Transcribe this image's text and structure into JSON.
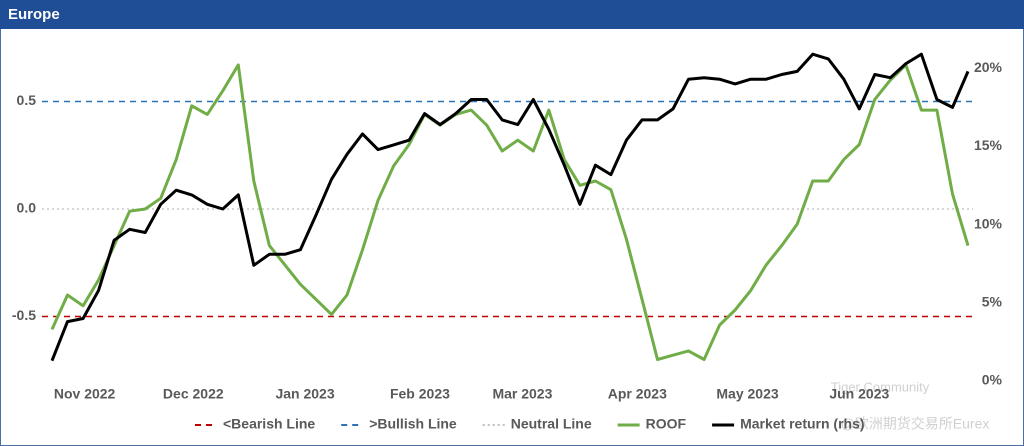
{
  "chart_data": {
    "type": "line",
    "title": "Europe",
    "x": [
      0,
      1,
      2,
      3,
      4,
      5,
      6,
      7,
      8,
      9,
      10,
      11,
      12,
      13,
      14,
      15,
      16,
      17,
      18,
      19,
      20,
      21,
      22,
      23,
      24,
      25,
      26,
      27,
      28,
      29,
      30,
      31,
      32,
      33,
      34,
      35,
      36,
      37,
      38,
      39,
      40,
      41,
      42,
      43,
      44,
      45,
      46,
      47,
      48,
      49,
      50,
      51,
      52,
      53,
      54,
      55,
      56,
      57,
      58,
      59
    ],
    "xlim": [
      0,
      59
    ],
    "xticks": [
      {
        "value": 2.1,
        "label": "Nov 2022"
      },
      {
        "value": 9.1,
        "label": "Dec 2022"
      },
      {
        "value": 16.3,
        "label": "Jan 2023"
      },
      {
        "value": 23.7,
        "label": "Feb 2023"
      },
      {
        "value": 30.3,
        "label": "Mar 2023"
      },
      {
        "value": 37.7,
        "label": "Apr 2023"
      },
      {
        "value": 44.8,
        "label": "May 2023"
      },
      {
        "value": 52.0,
        "label": "Jun 2023"
      }
    ],
    "ylim": [
      -0.8,
      0.8
    ],
    "yticks": [
      -0.5,
      {
        "value": 0,
        "label": "0.0"
      },
      0.5
    ],
    "y2lim": [
      0,
      22
    ],
    "y2ticks": [
      {
        "value": 0,
        "label": "0%"
      },
      {
        "value": 5,
        "label": "5%"
      },
      {
        "value": 10,
        "label": "10%"
      },
      {
        "value": 15,
        "label": "15%"
      },
      {
        "value": 20,
        "label": "20%"
      }
    ],
    "reference_lines": [
      {
        "name": "<Bearish Line",
        "value": -0.5,
        "color": "#c00000",
        "style": "dashed"
      },
      {
        "name": ">Bullish Line",
        "value": 0.5,
        "color": "#2e75b6",
        "style": "dashed"
      },
      {
        "name": "Neutral Line",
        "value": 0,
        "color": "#bfbfbf",
        "style": "dotted"
      }
    ],
    "series": [
      {
        "name": "ROOF",
        "color": "#70ad47",
        "values": [
          -0.56,
          -0.4,
          -0.45,
          -0.33,
          -0.17,
          -0.01,
          0.0,
          0.05,
          0.23,
          0.48,
          0.44,
          0.55,
          0.67,
          0.13,
          -0.17,
          -0.26,
          -0.35,
          -0.42,
          -0.49,
          -0.4,
          -0.19,
          0.04,
          0.2,
          0.3,
          0.44,
          0.39,
          0.44,
          0.46,
          0.39,
          0.27,
          0.32,
          0.27,
          0.46,
          0.23,
          0.11,
          0.13,
          0.09,
          -0.14,
          -0.42,
          -0.7,
          -0.68,
          -0.66,
          -0.7,
          -0.54,
          -0.47,
          -0.38,
          -0.26,
          -0.17,
          -0.07,
          0.13,
          0.13,
          0.23,
          0.3,
          0.51,
          0.6,
          0.67,
          0.46,
          0.46,
          0.07,
          -0.17
        ]
      },
      {
        "name": "Market return (rhs)",
        "color": "#000000",
        "axis": "y2",
        "values": [
          1.3,
          3.8,
          4.0,
          5.8,
          9.0,
          9.7,
          9.5,
          11.3,
          12.2,
          11.9,
          11.3,
          11.0,
          11.9,
          7.4,
          8.1,
          8.1,
          8.4,
          10.6,
          12.9,
          14.5,
          15.8,
          14.8,
          15.1,
          15.4,
          17.1,
          16.4,
          17.1,
          18.0,
          18.0,
          16.7,
          16.4,
          18.0,
          16.1,
          13.8,
          11.3,
          13.8,
          13.2,
          15.4,
          16.7,
          16.7,
          17.4,
          19.3,
          19.4,
          19.3,
          19.0,
          19.3,
          19.3,
          19.6,
          19.8,
          20.9,
          20.6,
          19.3,
          17.4,
          19.6,
          19.4,
          20.3,
          20.9,
          18.0,
          17.5,
          19.8
        ]
      }
    ],
    "watermark": [
      "Tiger Community",
      "@欧洲期货交易所Eurex"
    ]
  }
}
